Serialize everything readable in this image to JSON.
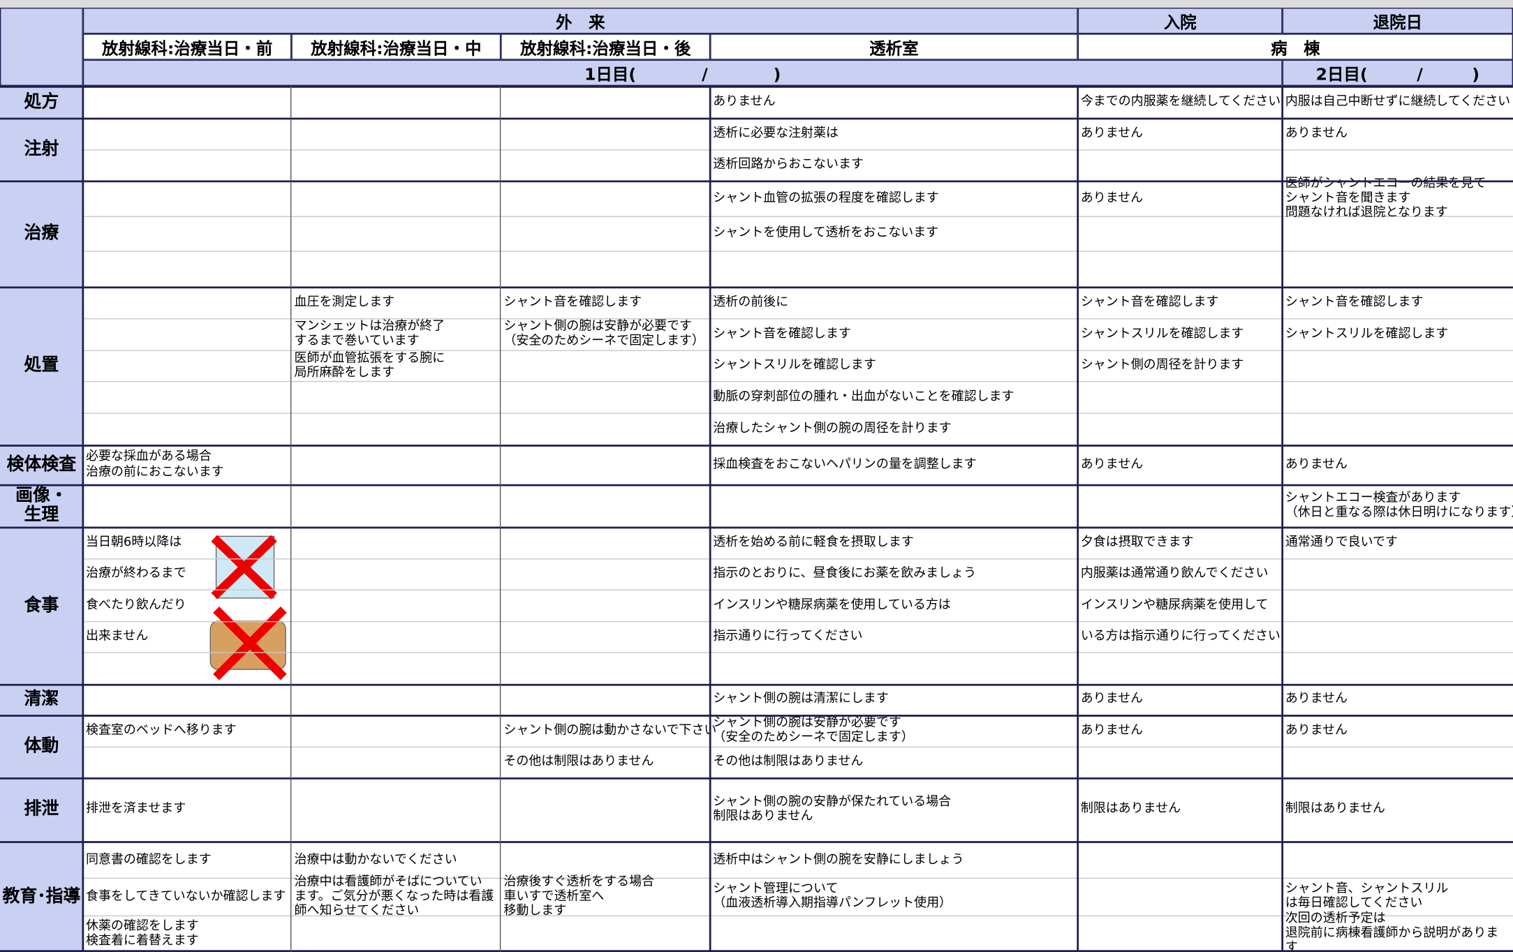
{
  "header": {
    "row1": [
      "外　来",
      "入院",
      "退院日"
    ],
    "row2": [
      "放射線科:治療当日・前",
      "放射線科:治療当日・中",
      "放射線科:治療当日・後",
      "透析室",
      "病　棟"
    ],
    "row3": [
      "1日目(　　　　/　　　　)",
      "2日目(　　　/　　　)"
    ]
  },
  "rows": [
    {
      "label": "処方",
      "cells": [
        [],
        [],
        [],
        [
          "ありません"
        ],
        [
          "今までの内服薬を継続してください"
        ],
        [
          "内服は自己中断せずに継続してください"
        ]
      ]
    },
    {
      "label": "注射",
      "cells": [
        [],
        [],
        [],
        [
          "透析に必要な注射薬は",
          "透析回路からおこないます"
        ],
        [
          "ありません"
        ],
        [
          "ありません"
        ]
      ]
    },
    {
      "label": "治療",
      "cells": [
        [],
        [],
        [],
        [
          "シャント血管の拡張の程度を確認します",
          "シャントを使用して透析をおこないます"
        ],
        [
          "ありません"
        ],
        [
          "医師がシャントエコーの結果を見て\nシャント音を聞きます\n問題なければ退院となります"
        ]
      ]
    },
    {
      "label": "処置",
      "cells": [
        [],
        [
          "血圧を測定します",
          "マンシェットは治療が終了\nするまで巻いています",
          "医師が血管拡張をする腕に\n局所麻酔をします"
        ],
        [
          "シャント音を確認します",
          "シャント側の腕は安静が必要です\n（安全のためシーネで固定します）"
        ],
        [
          "透析の前後に",
          "シャント音を確認します",
          "シャントスリルを確認します",
          "動脈の穿刺部位の腫れ・出血がないことを確認します",
          "治療したシャント側の腕の周径を計ります"
        ],
        [
          "シャント音を確認します",
          "シャントスリルを確認します",
          "シャント側の周径を計ります"
        ],
        [
          "シャント音を確認します",
          "シャントスリルを確認します"
        ]
      ]
    },
    {
      "label": "検体検査",
      "cells": [
        [
          "必要な採血がある場合\n治療の前におこないます"
        ],
        [],
        [],
        [
          "採血検査をおこないヘパリンの量を調整します"
        ],
        [
          "ありません"
        ],
        [
          "ありません"
        ]
      ]
    },
    {
      "label": "画像・\n生理",
      "cells": [
        [],
        [],
        [],
        [],
        [],
        [
          "シャントエコー検査があります\n（休日と重なる際は休日明けになります）"
        ]
      ]
    },
    {
      "label": "食事",
      "cells": [
        [
          "当日朝6時以降は",
          "治療が終わるまで",
          "食べたり飲んだり",
          "出来ません"
        ],
        [],
        [],
        [
          "透析を始める前に軽食を摂取します",
          "指示のとおりに、昼食後にお薬を飲みましょう",
          "インスリンや糖尿病薬を使用している方は",
          "指示通りに行ってください"
        ],
        [
          "夕食は摂取できます",
          "内服薬は通常通り飲んでください",
          "インスリンや糖尿病薬を使用して",
          "いる方は指示通りに行ってください"
        ],
        [
          "通常通りで良いです"
        ]
      ]
    },
    {
      "label": "清潔",
      "cells": [
        [],
        [],
        [],
        [
          "シャント側の腕は清潔にします"
        ],
        [
          "ありません"
        ],
        [
          "ありません"
        ]
      ]
    },
    {
      "label": "体動",
      "cells": [
        [
          "検査室のベッドへ移ります"
        ],
        [],
        [
          "シャント側の腕は動かさないで下さい",
          "その他は制限はありません"
        ],
        [
          "シャント側の腕は安静が必要です\n（安全のためシーネで固定します）",
          "その他は制限はありません"
        ],
        [
          "ありません"
        ],
        [
          "ありません"
        ]
      ]
    },
    {
      "label": "排泄",
      "cells": [
        [
          "排泄を済ませます"
        ],
        [],
        [],
        [
          "シャント側の腕の安静が保たれている場合\n制限はありません"
        ],
        [
          "制限はありません"
        ],
        [
          "制限はありません"
        ]
      ]
    },
    {
      "label": "教育･指導",
      "cells": [
        [
          "同意書の確認をします",
          "食事をしてきていないか確認します",
          "休薬の確認をします\n検査着に着替えます"
        ],
        [
          "治療中は動かないでください",
          "治療中は看護師がそばについてい\nます。ご気分が悪くなった時は看護\n師へ知らせてください"
        ],
        [
          null,
          "治療後すぐ透析をする場合\n車いすで透析室へ\n移動します"
        ],
        [
          "透析中はシャント側の腕を安静にしましょう",
          "シャント管理について\n（血液透析導入期指導パンフレット使用）"
        ],
        [],
        [
          null,
          "シャント音、シャントスリル\nは毎日確認してください",
          "次回の透析予定は\n退院前に病棟看護師から説明がありま\nす"
        ]
      ]
    }
  ]
}
